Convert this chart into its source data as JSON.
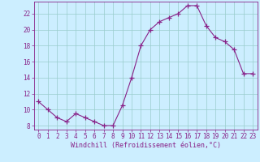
{
  "x": [
    0,
    1,
    2,
    3,
    4,
    5,
    6,
    7,
    8,
    9,
    10,
    11,
    12,
    13,
    14,
    15,
    16,
    17,
    18,
    19,
    20,
    21,
    22,
    23
  ],
  "y": [
    11,
    10,
    9,
    8.5,
    9.5,
    9,
    8.5,
    8,
    8,
    10.5,
    14,
    18,
    20,
    21,
    21.5,
    22,
    23,
    23,
    20.5,
    19,
    18.5,
    17.5,
    14.5,
    14.5
  ],
  "line_color": "#882288",
  "marker": "+",
  "marker_size": 4,
  "bg_color": "#cceeff",
  "grid_color": "#99cccc",
  "xlabel": "Windchill (Refroidissement éolien,°C)",
  "xlabel_color": "#882288",
  "tick_color": "#882288",
  "ylim": [
    7.5,
    23.5
  ],
  "xlim": [
    -0.5,
    23.5
  ],
  "yticks": [
    8,
    10,
    12,
    14,
    16,
    18,
    20,
    22
  ],
  "xticks": [
    0,
    1,
    2,
    3,
    4,
    5,
    6,
    7,
    8,
    9,
    10,
    11,
    12,
    13,
    14,
    15,
    16,
    17,
    18,
    19,
    20,
    21,
    22,
    23
  ],
  "label_fontsize": 6.0,
  "tick_fontsize": 5.5
}
